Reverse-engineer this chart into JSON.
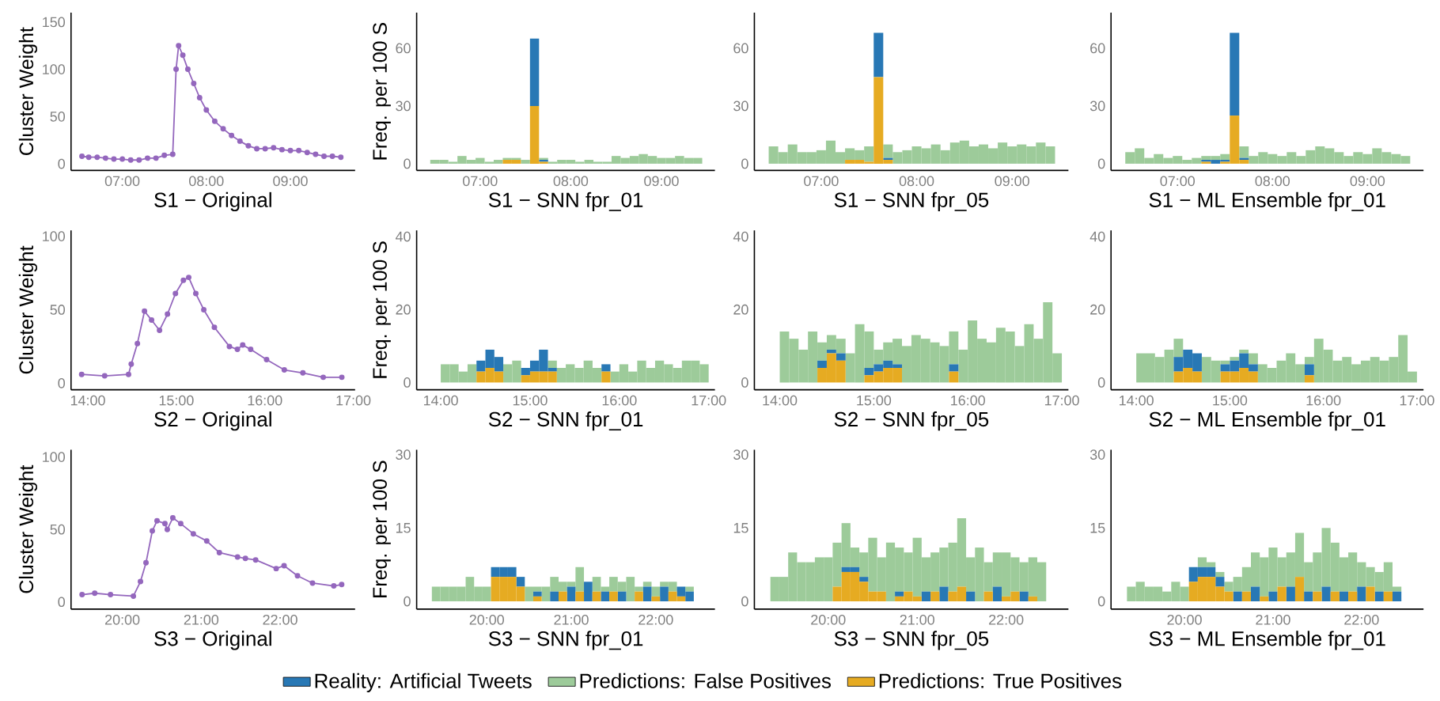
{
  "chart_data": [
    {
      "type": "line",
      "xlabel": "S1 − Original",
      "ylabel": "Cluster Weight",
      "color": "#9467bd",
      "marker": "circle",
      "xlim": [
        6.39,
        9.77
      ],
      "ylim": [
        -7,
        160
      ],
      "yticks": [
        0,
        50,
        100,
        150
      ],
      "xticks": [
        {
          "value": 7,
          "label": "07:00"
        },
        {
          "value": 8,
          "label": "08:00"
        },
        {
          "value": 9,
          "label": "09:00"
        }
      ],
      "x": [
        6.52,
        6.6,
        6.7,
        6.8,
        6.9,
        7.0,
        7.1,
        7.2,
        7.3,
        7.4,
        7.5,
        7.6,
        7.64,
        7.67,
        7.72,
        7.78,
        7.85,
        7.92,
        8.0,
        8.1,
        8.2,
        8.3,
        8.4,
        8.5,
        8.6,
        8.7,
        8.8,
        8.9,
        9.0,
        9.1,
        9.2,
        9.3,
        9.4,
        9.5,
        9.6
      ],
      "values": [
        8,
        7,
        7,
        6,
        5,
        5,
        4,
        4,
        6,
        6,
        9,
        10,
        100,
        125,
        115,
        100,
        85,
        70,
        57,
        45,
        37,
        30,
        24,
        19,
        16,
        16,
        17,
        15,
        14,
        14,
        12,
        10,
        8,
        8,
        7
      ]
    },
    {
      "type": "bar",
      "stacked": true,
      "xlabel": "S1 − SNN fpr_01",
      "ylabel": "Freq. per 100 S",
      "xlim": [
        6.3,
        9.59
      ],
      "ylim": [
        -3.5,
        78.5
      ],
      "yticks": [
        0,
        30,
        60
      ],
      "xticks": [
        {
          "value": 7,
          "label": "07:00"
        },
        {
          "value": 8,
          "label": "08:00"
        },
        {
          "value": 9,
          "label": "09:00"
        }
      ],
      "x": [
        6.5,
        6.6,
        6.7,
        6.8,
        6.9,
        7.0,
        7.1,
        7.2,
        7.3,
        7.4,
        7.5,
        7.6,
        7.7,
        7.8,
        7.9,
        8.0,
        8.1,
        8.2,
        8.3,
        8.4,
        8.5,
        8.6,
        8.7,
        8.8,
        8.9,
        9.0,
        9.1,
        9.2,
        9.3,
        9.4
      ],
      "series": [
        {
          "color": "#e6ab22",
          "values": [
            null,
            null,
            null,
            null,
            null,
            null,
            null,
            null,
            2,
            2,
            null,
            30,
            1,
            null,
            null,
            null,
            null,
            null,
            null,
            null,
            null,
            null,
            null,
            null,
            null,
            null,
            null,
            null,
            null,
            null
          ]
        },
        {
          "color": "#2878b5",
          "values": [
            null,
            null,
            null,
            null,
            null,
            null,
            null,
            null,
            null,
            null,
            null,
            35,
            1,
            null,
            null,
            null,
            null,
            null,
            null,
            null,
            null,
            null,
            null,
            null,
            null,
            null,
            null,
            null,
            null,
            null
          ]
        },
        {
          "color": "#9dcb9a",
          "values": [
            2,
            2,
            1,
            4,
            2,
            3,
            1,
            2,
            1,
            1,
            2,
            null,
            1,
            1,
            2,
            2,
            1,
            2,
            1,
            1,
            4,
            3,
            4,
            5,
            4,
            3,
            3,
            4,
            3,
            3
          ]
        }
      ]
    },
    {
      "type": "bar",
      "stacked": true,
      "xlabel": "S1 − SNN fpr_05",
      "xlim": [
        6.3,
        9.59
      ],
      "ylim": [
        -3.5,
        78.5
      ],
      "yticks": [
        0,
        30,
        60
      ],
      "xticks": [
        {
          "value": 7,
          "label": "07:00"
        },
        {
          "value": 8,
          "label": "08:00"
        },
        {
          "value": 9,
          "label": "09:00"
        }
      ],
      "x": [
        6.5,
        6.6,
        6.7,
        6.8,
        6.9,
        7.0,
        7.1,
        7.2,
        7.3,
        7.4,
        7.5,
        7.6,
        7.7,
        7.8,
        7.9,
        8.0,
        8.1,
        8.2,
        8.3,
        8.4,
        8.5,
        8.6,
        8.7,
        8.8,
        8.9,
        9.0,
        9.1,
        9.2,
        9.3,
        9.4
      ],
      "series": [
        {
          "color": "#e6ab22",
          "values": [
            null,
            null,
            null,
            null,
            null,
            null,
            null,
            null,
            2,
            2,
            1,
            45,
            2,
            null,
            null,
            null,
            null,
            null,
            null,
            null,
            null,
            null,
            null,
            null,
            null,
            null,
            null,
            null,
            null,
            null
          ]
        },
        {
          "color": "#2878b5",
          "values": [
            null,
            null,
            null,
            null,
            null,
            null,
            null,
            null,
            null,
            null,
            null,
            23,
            1,
            null,
            null,
            null,
            null,
            null,
            null,
            null,
            null,
            null,
            null,
            null,
            null,
            null,
            null,
            null,
            null,
            null
          ]
        },
        {
          "color": "#9dcb9a",
          "values": [
            9,
            6,
            10,
            6,
            6,
            7,
            12,
            6,
            6,
            5,
            8,
            null,
            7,
            6,
            7,
            9,
            8,
            10,
            7,
            11,
            12,
            9,
            10,
            8,
            11,
            9,
            10,
            9,
            11,
            9
          ]
        }
      ]
    },
    {
      "type": "bar",
      "stacked": true,
      "xlabel": "S1 − ML Ensemble fpr_01",
      "xlim": [
        6.3,
        9.59
      ],
      "ylim": [
        -3.5,
        78.5
      ],
      "yticks": [
        0,
        30,
        60
      ],
      "xticks": [
        {
          "value": 7,
          "label": "07:00"
        },
        {
          "value": 8,
          "label": "08:00"
        },
        {
          "value": 9,
          "label": "09:00"
        }
      ],
      "x": [
        6.5,
        6.6,
        6.7,
        6.8,
        6.9,
        7.0,
        7.1,
        7.2,
        7.3,
        7.4,
        7.5,
        7.6,
        7.7,
        7.8,
        7.9,
        8.0,
        8.1,
        8.2,
        8.3,
        8.4,
        8.5,
        8.6,
        8.7,
        8.8,
        8.9,
        9.0,
        9.1,
        9.2,
        9.3,
        9.4
      ],
      "series": [
        {
          "color": "#e6ab22",
          "values": [
            null,
            null,
            null,
            null,
            null,
            null,
            null,
            null,
            1,
            null,
            1,
            25,
            2,
            null,
            null,
            null,
            null,
            null,
            null,
            null,
            null,
            null,
            null,
            null,
            null,
            null,
            null,
            null,
            null,
            null
          ]
        },
        {
          "color": "#2878b5",
          "values": [
            null,
            null,
            null,
            null,
            null,
            null,
            null,
            null,
            1,
            2,
            1,
            43,
            1,
            null,
            null,
            null,
            null,
            null,
            null,
            null,
            null,
            null,
            null,
            null,
            null,
            null,
            null,
            null,
            null,
            null
          ]
        },
        {
          "color": "#9dcb9a",
          "values": [
            6,
            8,
            3,
            5,
            3,
            4,
            2,
            3,
            2,
            2,
            3,
            null,
            6,
            4,
            6,
            5,
            4,
            6,
            4,
            7,
            9,
            8,
            6,
            4,
            6,
            5,
            8,
            6,
            5,
            4
          ]
        }
      ]
    },
    {
      "type": "line",
      "xlabel": "S2 − Original",
      "ylabel": "Cluster Weight",
      "color": "#9467bd",
      "marker": "circle",
      "xlim": [
        13.81,
        17.02
      ],
      "ylim": [
        -4.5,
        104
      ],
      "yticks": [
        0,
        50,
        100
      ],
      "xticks": [
        {
          "value": 14,
          "label": "14:00"
        },
        {
          "value": 15,
          "label": "15:00"
        },
        {
          "value": 16,
          "label": "16:00"
        },
        {
          "value": 17,
          "label": "17:00"
        }
      ],
      "x": [
        13.93,
        14.19,
        14.46,
        14.49,
        14.56,
        14.64,
        14.72,
        14.81,
        14.9,
        14.99,
        15.08,
        15.14,
        15.22,
        15.31,
        15.43,
        15.6,
        15.69,
        15.75,
        15.84,
        16.02,
        16.22,
        16.43,
        16.66,
        16.87
      ],
      "values": [
        6,
        5,
        6,
        13,
        27,
        49,
        43,
        36,
        47,
        61,
        70,
        72,
        61,
        50,
        38,
        25,
        23,
        26,
        23,
        16,
        9,
        7,
        4,
        4
      ]
    },
    {
      "type": "bar",
      "stacked": true,
      "xlabel": "S2 − SNN fpr_01",
      "ylabel": "Freq. per 100 S",
      "xlim": [
        13.73,
        17.07
      ],
      "ylim": [
        -2,
        41.7
      ],
      "yticks": [
        0,
        20,
        40
      ],
      "xticks": [
        {
          "value": 14,
          "label": "14:00"
        },
        {
          "value": 15,
          "label": "15:00"
        },
        {
          "value": 16,
          "label": "16:00"
        },
        {
          "value": 17,
          "label": "17:00"
        }
      ],
      "x": [
        14.05,
        14.15,
        14.25,
        14.35,
        14.45,
        14.55,
        14.65,
        14.75,
        14.85,
        14.95,
        15.05,
        15.15,
        15.25,
        15.35,
        15.45,
        15.55,
        15.65,
        15.75,
        15.85,
        15.95,
        16.05,
        16.15,
        16.25,
        16.35,
        16.45,
        16.55,
        16.65,
        16.75,
        16.85,
        16.95
      ],
      "series": [
        {
          "color": "#e6ab22",
          "values": [
            null,
            null,
            null,
            null,
            3,
            4,
            3,
            null,
            null,
            2,
            3,
            3,
            3,
            null,
            null,
            null,
            null,
            null,
            3,
            null,
            null,
            null,
            null,
            null,
            null,
            null,
            null,
            null,
            null,
            null
          ]
        },
        {
          "color": "#2878b5",
          "values": [
            null,
            null,
            null,
            null,
            3,
            5,
            4,
            null,
            null,
            2,
            3,
            6,
            1,
            null,
            null,
            null,
            null,
            null,
            2,
            null,
            null,
            null,
            null,
            null,
            null,
            null,
            null,
            null,
            null,
            null
          ]
        },
        {
          "color": "#9dcb9a",
          "values": [
            5,
            5,
            3,
            5,
            null,
            null,
            null,
            5,
            6,
            null,
            null,
            null,
            2,
            4,
            5,
            4,
            6,
            4,
            null,
            3,
            5,
            3,
            6,
            4,
            6,
            5,
            4,
            6,
            6,
            5
          ]
        }
      ]
    },
    {
      "type": "bar",
      "stacked": true,
      "xlabel": "S2 − SNN fpr_05",
      "xlim": [
        13.73,
        17.07
      ],
      "ylim": [
        -2,
        41.7
      ],
      "yticks": [
        0,
        20,
        40
      ],
      "xticks": [
        {
          "value": 14,
          "label": "14:00"
        },
        {
          "value": 15,
          "label": "15:00"
        },
        {
          "value": 16,
          "label": "16:00"
        },
        {
          "value": 17,
          "label": "17:00"
        }
      ],
      "x": [
        14.05,
        14.15,
        14.25,
        14.35,
        14.45,
        14.55,
        14.65,
        14.75,
        14.85,
        14.95,
        15.05,
        15.15,
        15.25,
        15.35,
        15.45,
        15.55,
        15.65,
        15.75,
        15.85,
        15.95,
        16.05,
        16.15,
        16.25,
        16.35,
        16.45,
        16.55,
        16.65,
        16.75,
        16.85,
        16.95
      ],
      "series": [
        {
          "color": "#e6ab22",
          "values": [
            null,
            null,
            null,
            null,
            4,
            8,
            6,
            null,
            null,
            2,
            3,
            4,
            4,
            null,
            null,
            null,
            null,
            null,
            3,
            null,
            null,
            null,
            null,
            null,
            null,
            null,
            null,
            null,
            null,
            null
          ]
        },
        {
          "color": "#2878b5",
          "values": [
            null,
            null,
            null,
            null,
            2,
            1,
            2,
            null,
            null,
            2,
            2,
            2,
            1,
            null,
            null,
            null,
            null,
            null,
            2,
            null,
            null,
            null,
            null,
            null,
            null,
            null,
            null,
            null,
            null,
            null
          ]
        },
        {
          "color": "#9dcb9a",
          "values": [
            14,
            12,
            9,
            14,
            5,
            4,
            4,
            8,
            16,
            10,
            4,
            5,
            7,
            10,
            13,
            12,
            11,
            10,
            9,
            9,
            17,
            12,
            11,
            15,
            14,
            10,
            16,
            12,
            22,
            8
          ]
        }
      ]
    },
    {
      "type": "bar",
      "stacked": true,
      "xlabel": "S2 − ML Ensemble fpr_01",
      "xlim": [
        13.73,
        17.07
      ],
      "ylim": [
        -2,
        41.7
      ],
      "yticks": [
        0,
        20,
        40
      ],
      "xticks": [
        {
          "value": 14,
          "label": "14:00"
        },
        {
          "value": 15,
          "label": "15:00"
        },
        {
          "value": 16,
          "label": "16:00"
        },
        {
          "value": 17,
          "label": "17:00"
        }
      ],
      "x": [
        14.05,
        14.15,
        14.25,
        14.35,
        14.45,
        14.55,
        14.65,
        14.75,
        14.85,
        14.95,
        15.05,
        15.15,
        15.25,
        15.35,
        15.45,
        15.55,
        15.65,
        15.75,
        15.85,
        15.95,
        16.05,
        16.15,
        16.25,
        16.35,
        16.45,
        16.55,
        16.65,
        16.75,
        16.85,
        16.95
      ],
      "series": [
        {
          "color": "#e6ab22",
          "values": [
            null,
            null,
            null,
            null,
            3,
            4,
            3,
            null,
            null,
            3,
            3,
            4,
            3,
            null,
            null,
            null,
            null,
            null,
            2,
            null,
            null,
            null,
            null,
            null,
            null,
            null,
            null,
            null,
            null,
            null
          ]
        },
        {
          "color": "#2878b5",
          "values": [
            null,
            null,
            null,
            null,
            4,
            5,
            5,
            null,
            null,
            2,
            3,
            4,
            2,
            null,
            null,
            null,
            null,
            null,
            3,
            null,
            null,
            null,
            null,
            null,
            null,
            null,
            null,
            null,
            null,
            null
          ]
        },
        {
          "color": "#9dcb9a",
          "values": [
            8,
            8,
            7,
            9,
            5,
            null,
            null,
            7,
            6,
            1,
            1,
            1,
            3,
            5,
            4,
            6,
            8,
            5,
            2,
            12,
            9,
            6,
            7,
            5,
            6,
            7,
            6,
            7,
            13,
            3
          ]
        }
      ]
    },
    {
      "type": "line",
      "xlabel": "S3 − Original",
      "ylabel": "Cluster Weight",
      "color": "#9467bd",
      "marker": "circle",
      "xlim": [
        19.35,
        22.95
      ],
      "ylim": [
        -5,
        105
      ],
      "yticks": [
        0,
        50,
        100
      ],
      "xticks": [
        {
          "value": 20,
          "label": "20:00"
        },
        {
          "value": 21,
          "label": "21:00"
        },
        {
          "value": 22,
          "label": "22:00"
        }
      ],
      "x": [
        19.49,
        19.65,
        19.85,
        20.14,
        20.23,
        20.3,
        20.38,
        20.44,
        20.54,
        20.57,
        20.64,
        20.74,
        20.9,
        21.07,
        21.23,
        21.46,
        21.56,
        21.69,
        21.95,
        22.05,
        22.22,
        22.41,
        22.68,
        22.78
      ],
      "values": [
        5,
        6,
        5,
        4,
        14,
        27,
        49,
        56,
        54,
        50,
        58,
        54,
        47,
        42,
        34,
        31,
        30,
        29,
        23,
        25,
        18,
        13,
        11,
        12
      ]
    },
    {
      "type": "bar",
      "stacked": true,
      "xlabel": "S3 − SNN fpr_01",
      "ylabel": "Freq. per 100 S",
      "xlim": [
        19.17,
        22.7
      ],
      "ylim": [
        -1.6,
        31
      ],
      "yticks": [
        0,
        15,
        30
      ],
      "xticks": [
        {
          "value": 20,
          "label": "20:00"
        },
        {
          "value": 21,
          "label": "21:00"
        },
        {
          "value": 22,
          "label": "22:00"
        }
      ],
      "x": [
        19.4,
        19.5,
        19.6,
        19.7,
        19.8,
        19.9,
        20.0,
        20.1,
        20.2,
        20.3,
        20.4,
        20.5,
        20.6,
        20.7,
        20.8,
        20.9,
        21.0,
        21.1,
        21.2,
        21.3,
        21.4,
        21.5,
        21.6,
        21.7,
        21.8,
        21.9,
        22.0,
        22.1,
        22.2,
        22.3,
        22.4
      ],
      "series": [
        {
          "color": "#e6ab22",
          "values": [
            null,
            null,
            null,
            null,
            null,
            null,
            null,
            5,
            5,
            5,
            3,
            null,
            1,
            null,
            null,
            2,
            null,
            2,
            null,
            2,
            null,
            2,
            null,
            null,
            2,
            null,
            1,
            null,
            2,
            1,
            null
          ]
        },
        {
          "color": "#2878b5",
          "values": [
            null,
            null,
            null,
            null,
            null,
            null,
            null,
            2,
            2,
            2,
            2,
            null,
            1,
            null,
            2,
            null,
            3,
            null,
            4,
            null,
            2,
            null,
            2,
            null,
            null,
            3,
            null,
            3,
            null,
            2,
            2
          ]
        },
        {
          "color": "#9dcb9a",
          "values": [
            3,
            3,
            3,
            3,
            5,
            3,
            3,
            null,
            null,
            null,
            null,
            3,
            1,
            3,
            3,
            2,
            1,
            5,
            null,
            3,
            1,
            3,
            2,
            5,
            1,
            1,
            2,
            1,
            2,
            null,
            1
          ]
        }
      ]
    },
    {
      "type": "bar",
      "stacked": true,
      "xlabel": "S3 − SNN fpr_05",
      "legend": "bottom",
      "xlim": [
        19.17,
        22.7
      ],
      "ylim": [
        -1.6,
        31
      ],
      "yticks": [
        0,
        15,
        30
      ],
      "xticks": [
        {
          "value": 20,
          "label": "20:00"
        },
        {
          "value": 21,
          "label": "21:00"
        },
        {
          "value": 22,
          "label": "22:00"
        }
      ],
      "x": [
        19.4,
        19.5,
        19.6,
        19.7,
        19.8,
        19.9,
        20.0,
        20.1,
        20.2,
        20.3,
        20.4,
        20.5,
        20.6,
        20.7,
        20.8,
        20.9,
        21.0,
        21.1,
        21.2,
        21.3,
        21.4,
        21.5,
        21.6,
        21.7,
        21.8,
        21.9,
        22.0,
        22.1,
        22.2,
        22.3,
        22.4
      ],
      "series": [
        {
          "name": "Predictions: True Positives",
          "color": "#e6ab22",
          "values": [
            null,
            null,
            null,
            null,
            null,
            null,
            null,
            3,
            6,
            6,
            4,
            2,
            2,
            null,
            1,
            2,
            1,
            null,
            2,
            null,
            2,
            3,
            null,
            null,
            2,
            null,
            1,
            2,
            null,
            1,
            null
          ]
        },
        {
          "name": "Reality: Artificial Tweets",
          "color": "#2878b5",
          "values": [
            null,
            null,
            null,
            null,
            null,
            null,
            null,
            null,
            1,
            1,
            1,
            null,
            null,
            null,
            1,
            null,
            null,
            2,
            null,
            3,
            null,
            null,
            2,
            null,
            null,
            3,
            null,
            null,
            2,
            null,
            null
          ]
        },
        {
          "name": "Predictions: False Positives",
          "color": "#9dcb9a",
          "values": [
            5,
            5,
            10,
            8,
            8,
            9,
            9,
            9,
            9,
            4,
            5,
            11,
            7,
            12,
            9,
            8,
            12,
            7,
            8,
            8,
            10,
            14,
            7,
            11,
            6,
            7,
            9,
            7,
            6,
            8,
            8
          ]
        }
      ]
    },
    {
      "type": "bar",
      "stacked": true,
      "xlabel": "S3 − ML Ensemble fpr_01",
      "xlim": [
        19.17,
        22.7
      ],
      "ylim": [
        -1.6,
        31
      ],
      "yticks": [
        0,
        15,
        30
      ],
      "xticks": [
        {
          "value": 20,
          "label": "20:00"
        },
        {
          "value": 21,
          "label": "21:00"
        },
        {
          "value": 22,
          "label": "22:00"
        }
      ],
      "x": [
        19.4,
        19.5,
        19.6,
        19.7,
        19.8,
        19.9,
        20.0,
        20.1,
        20.2,
        20.3,
        20.4,
        20.5,
        20.6,
        20.7,
        20.8,
        20.9,
        21.0,
        21.1,
        21.2,
        21.3,
        21.4,
        21.5,
        21.6,
        21.7,
        21.8,
        21.9,
        22.0,
        22.1,
        22.2,
        22.3,
        22.4
      ],
      "series": [
        {
          "color": "#e6ab22",
          "values": [
            null,
            null,
            null,
            null,
            null,
            null,
            null,
            4,
            5,
            5,
            3,
            2,
            null,
            2,
            null,
            1,
            null,
            3,
            null,
            5,
            null,
            2,
            null,
            2,
            null,
            2,
            null,
            3,
            null,
            2,
            null
          ]
        },
        {
          "color": "#2878b5",
          "values": [
            null,
            null,
            null,
            null,
            null,
            null,
            null,
            3,
            2,
            2,
            2,
            null,
            2,
            null,
            3,
            null,
            2,
            null,
            3,
            null,
            2,
            null,
            3,
            null,
            2,
            null,
            3,
            null,
            2,
            null,
            2
          ]
        },
        {
          "color": "#9dcb9a",
          "values": [
            3,
            4,
            3,
            3,
            2,
            4,
            3,
            null,
            2,
            1,
            1,
            2,
            3,
            5,
            7,
            8,
            9,
            6,
            7,
            9,
            6,
            8,
            12,
            10,
            7,
            8,
            5,
            4,
            4,
            6,
            1
          ]
        }
      ]
    }
  ]
}
